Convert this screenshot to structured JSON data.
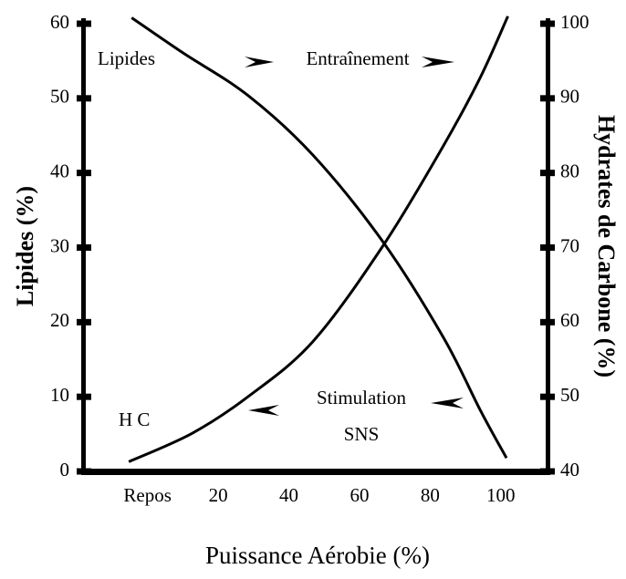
{
  "chart_data": {
    "type": "line",
    "y_label": "Lipides (%)",
    "y2_label": "Hydrates de Carbone (%)",
    "x_label": "Puissance Aérobie (%)",
    "annotations": [
      "Entraînement",
      "Stimulation",
      "SNS"
    ],
    "xlim": [
      -18,
      114
    ],
    "xticks": [
      {
        "value": 0,
        "label": "Repos"
      },
      20,
      40,
      60,
      80,
      100
    ],
    "ylim": [
      0,
      60
    ],
    "yticks": [
      0,
      10,
      20,
      30,
      40,
      50,
      60
    ],
    "y2lim": [
      40,
      100
    ],
    "y2ticks": [
      40,
      50,
      60,
      70,
      80,
      90,
      100
    ],
    "series": [
      {
        "name": "Lipides",
        "color": "#000000",
        "x": [
          -4.5,
          10,
          28.4,
          46.8,
          66.6,
          83.7,
          94.2,
          101.6
        ],
        "values": [
          60.8,
          56.1,
          50.4,
          42.4,
          30.8,
          18,
          8.2,
          1.8
        ]
      },
      {
        "name": "H C",
        "color": "#000000",
        "axis": "y2",
        "x": [
          -5.3,
          12.6,
          28.4,
          46.8,
          66.6,
          83.7,
          94.2,
          102
        ],
        "values": [
          41.3,
          45.1,
          50,
          57.4,
          70.2,
          83.6,
          92.8,
          101
        ]
      }
    ]
  }
}
